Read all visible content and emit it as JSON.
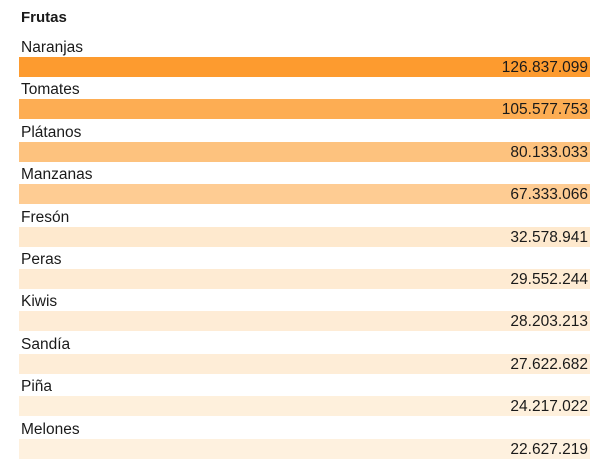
{
  "chart_data": {
    "type": "table",
    "title": "Frutas",
    "categories": [
      "Naranjas",
      "Tomates",
      "Plátanos",
      "Manzanas",
      "Fresón",
      "Peras",
      "Kiwis",
      "Sandía",
      "Piña",
      "Melones"
    ],
    "values": [
      126837099,
      105577753,
      80133033,
      67333066,
      32578941,
      29552244,
      28203213,
      27622682,
      24217022,
      22627219
    ],
    "value_labels": [
      "126.837.099",
      "105.577.753",
      "80.133.033",
      "67.333.066",
      "32.578.941",
      "29.552.244",
      "28.203.213",
      "27.622.682",
      "24.217.022",
      "22.627.219"
    ],
    "colors": {
      "max": "#fd9b2f",
      "min": "#fef1df"
    }
  }
}
